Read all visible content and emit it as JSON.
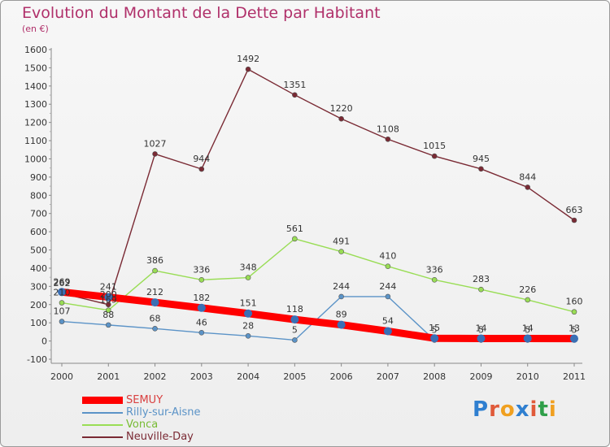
{
  "title": "Evolution du Montant de la Dette par Habitant",
  "subtitle": "(en €)",
  "logo": "Proxiti",
  "chart_data": {
    "type": "line",
    "x": [
      "2000",
      "2001",
      "2002",
      "2003",
      "2004",
      "2005",
      "2006",
      "2007",
      "2008",
      "2009",
      "2010",
      "2011"
    ],
    "ylim": [
      -100,
      1600
    ],
    "yticks": [
      -100,
      0,
      100,
      200,
      300,
      400,
      500,
      600,
      700,
      800,
      900,
      1000,
      1100,
      1200,
      1300,
      1400,
      1500,
      1600
    ],
    "grid": false,
    "legend_position": "bottom-left",
    "series": [
      {
        "name": "SEMUY",
        "color": "#ff0000",
        "values": [
          269,
          241,
          212,
          182,
          151,
          118,
          89,
          54,
          15,
          14,
          14,
          13
        ]
      },
      {
        "name": "Rilly-sur-Aisne",
        "color": "#5b93c7",
        "values": [
          107,
          88,
          68,
          46,
          28,
          5,
          244,
          244,
          5,
          5,
          5,
          5
        ]
      },
      {
        "name": "Vonca",
        "color": "#99dd55",
        "values": [
          210,
          169,
          386,
          336,
          348,
          561,
          491,
          410,
          336,
          283,
          226,
          160
        ]
      },
      {
        "name": "Neuville-Day",
        "color": "#7a2a34",
        "values": [
          262,
          200,
          1027,
          944,
          1492,
          1351,
          1220,
          1108,
          1015,
          945,
          844,
          663
        ]
      }
    ]
  }
}
